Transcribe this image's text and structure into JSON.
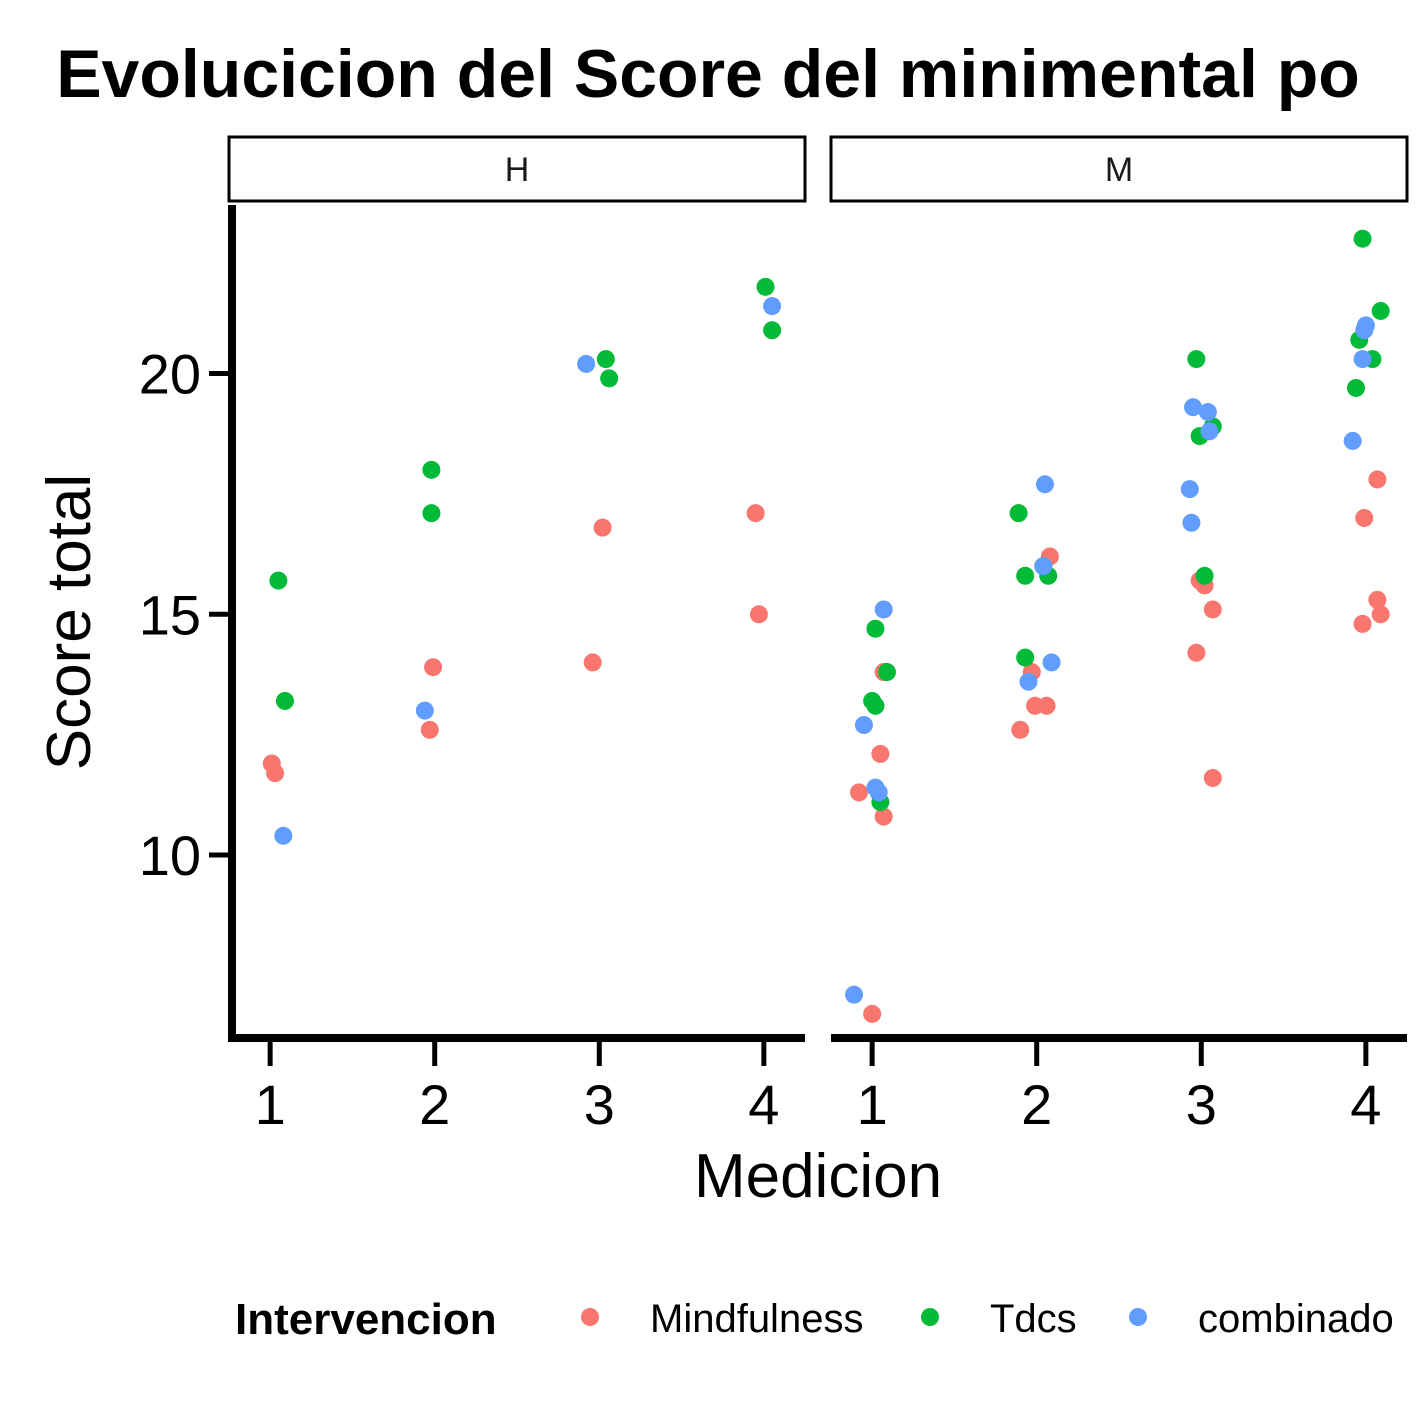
{
  "chart_data": {
    "type": "scatter",
    "title": "Evolucicion del Score del minimental po",
    "xlabel": "Medicion",
    "ylabel": "Score total",
    "ylim": [
      6.2,
      23.5
    ],
    "yticks": [
      10,
      15,
      20
    ],
    "xticks": [
      1,
      2,
      3,
      4
    ],
    "grid": false,
    "legend": {
      "title": "Intervencion",
      "position": "bottom"
    },
    "facets": [
      "H",
      "M"
    ],
    "series": [
      {
        "name": "Mindfulness",
        "color": "#F8766D",
        "points": [
          {
            "facet": "H",
            "x": 1.01,
            "y": 11.9
          },
          {
            "facet": "H",
            "x": 1.03,
            "y": 11.7
          },
          {
            "facet": "H",
            "x": 1.97,
            "y": 12.6
          },
          {
            "facet": "H",
            "x": 1.99,
            "y": 13.9
          },
          {
            "facet": "H",
            "x": 2.96,
            "y": 14.0
          },
          {
            "facet": "H",
            "x": 3.02,
            "y": 16.8
          },
          {
            "facet": "H",
            "x": 3.95,
            "y": 17.1
          },
          {
            "facet": "H",
            "x": 3.97,
            "y": 15.0
          },
          {
            "facet": "M",
            "x": 1.0,
            "y": 6.7
          },
          {
            "facet": "M",
            "x": 0.92,
            "y": 11.3
          },
          {
            "facet": "M",
            "x": 1.05,
            "y": 12.1
          },
          {
            "facet": "M",
            "x": 1.07,
            "y": 10.8
          },
          {
            "facet": "M",
            "x": 1.07,
            "y": 13.8
          },
          {
            "facet": "M",
            "x": 1.9,
            "y": 12.6
          },
          {
            "facet": "M",
            "x": 1.97,
            "y": 13.8
          },
          {
            "facet": "M",
            "x": 1.99,
            "y": 13.1
          },
          {
            "facet": "M",
            "x": 2.06,
            "y": 13.1
          },
          {
            "facet": "M",
            "x": 2.08,
            "y": 16.2
          },
          {
            "facet": "M",
            "x": 2.97,
            "y": 14.2
          },
          {
            "facet": "M",
            "x": 2.99,
            "y": 15.7
          },
          {
            "facet": "M",
            "x": 3.02,
            "y": 15.6
          },
          {
            "facet": "M",
            "x": 3.07,
            "y": 15.1
          },
          {
            "facet": "M",
            "x": 3.07,
            "y": 11.6
          },
          {
            "facet": "M",
            "x": 3.98,
            "y": 14.8
          },
          {
            "facet": "M",
            "x": 3.99,
            "y": 17.0
          },
          {
            "facet": "M",
            "x": 4.07,
            "y": 17.8
          },
          {
            "facet": "M",
            "x": 4.07,
            "y": 15.3
          },
          {
            "facet": "M",
            "x": 4.09,
            "y": 15.0
          }
        ]
      },
      {
        "name": "Tdcs",
        "color": "#00BA38",
        "points": [
          {
            "facet": "H",
            "x": 1.05,
            "y": 15.7
          },
          {
            "facet": "H",
            "x": 1.09,
            "y": 13.2
          },
          {
            "facet": "H",
            "x": 1.98,
            "y": 18.0
          },
          {
            "facet": "H",
            "x": 1.98,
            "y": 17.1
          },
          {
            "facet": "H",
            "x": 3.04,
            "y": 20.3
          },
          {
            "facet": "H",
            "x": 3.06,
            "y": 19.9
          },
          {
            "facet": "H",
            "x": 4.01,
            "y": 21.8
          },
          {
            "facet": "H",
            "x": 4.05,
            "y": 20.9
          },
          {
            "facet": "M",
            "x": 1.02,
            "y": 14.7
          },
          {
            "facet": "M",
            "x": 1.0,
            "y": 13.2
          },
          {
            "facet": "M",
            "x": 1.02,
            "y": 13.1
          },
          {
            "facet": "M",
            "x": 1.05,
            "y": 11.1
          },
          {
            "facet": "M",
            "x": 1.09,
            "y": 13.8
          },
          {
            "facet": "M",
            "x": 1.89,
            "y": 17.1
          },
          {
            "facet": "M",
            "x": 1.93,
            "y": 15.8
          },
          {
            "facet": "M",
            "x": 1.93,
            "y": 14.1
          },
          {
            "facet": "M",
            "x": 2.04,
            "y": 16.0
          },
          {
            "facet": "M",
            "x": 2.07,
            "y": 15.8
          },
          {
            "facet": "M",
            "x": 2.97,
            "y": 20.3
          },
          {
            "facet": "M",
            "x": 2.99,
            "y": 18.7
          },
          {
            "facet": "M",
            "x": 3.02,
            "y": 15.8
          },
          {
            "facet": "M",
            "x": 3.07,
            "y": 18.9
          },
          {
            "facet": "M",
            "x": 3.98,
            "y": 22.8
          },
          {
            "facet": "M",
            "x": 3.96,
            "y": 20.7
          },
          {
            "facet": "M",
            "x": 3.94,
            "y": 19.7
          },
          {
            "facet": "M",
            "x": 4.04,
            "y": 20.3
          },
          {
            "facet": "M",
            "x": 4.09,
            "y": 21.3
          }
        ]
      },
      {
        "name": "combinado",
        "color": "#619CFF",
        "points": [
          {
            "facet": "H",
            "x": 1.08,
            "y": 10.4
          },
          {
            "facet": "H",
            "x": 1.94,
            "y": 13.0
          },
          {
            "facet": "H",
            "x": 2.92,
            "y": 20.2
          },
          {
            "facet": "H",
            "x": 4.05,
            "y": 21.4
          },
          {
            "facet": "M",
            "x": 0.89,
            "y": 7.1
          },
          {
            "facet": "M",
            "x": 0.95,
            "y": 12.7
          },
          {
            "facet": "M",
            "x": 1.02,
            "y": 11.4
          },
          {
            "facet": "M",
            "x": 1.04,
            "y": 11.3
          },
          {
            "facet": "M",
            "x": 1.07,
            "y": 15.1
          },
          {
            "facet": "M",
            "x": 1.95,
            "y": 13.6
          },
          {
            "facet": "M",
            "x": 2.04,
            "y": 16.0
          },
          {
            "facet": "M",
            "x": 2.05,
            "y": 17.7
          },
          {
            "facet": "M",
            "x": 2.09,
            "y": 14.0
          },
          {
            "facet": "M",
            "x": 2.93,
            "y": 17.6
          },
          {
            "facet": "M",
            "x": 2.94,
            "y": 16.9
          },
          {
            "facet": "M",
            "x": 2.95,
            "y": 19.3
          },
          {
            "facet": "M",
            "x": 3.04,
            "y": 19.2
          },
          {
            "facet": "M",
            "x": 3.05,
            "y": 18.8
          },
          {
            "facet": "M",
            "x": 3.92,
            "y": 18.6
          },
          {
            "facet": "M",
            "x": 3.98,
            "y": 20.3
          },
          {
            "facet": "M",
            "x": 3.99,
            "y": 20.9
          },
          {
            "facet": "M",
            "x": 4.0,
            "y": 21.0
          }
        ]
      }
    ]
  }
}
